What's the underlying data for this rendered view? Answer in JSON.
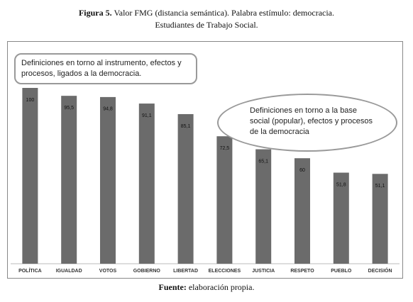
{
  "chart_data": {
    "type": "bar",
    "title": {
      "label": "Figura 5.",
      "text": "Valor FMG (distancia semántica). Palabra estímulo: democracia."
    },
    "subtitle": "Estudiantes de Trabajo Social.",
    "source": {
      "label": "Fuente:",
      "text": "elaboración propia."
    },
    "annotations": [
      "Definiciones en torno al instrumento, efectos y procesos, ligados a la democracia.",
      "Definiciones en torno a la base social (popular), efectos y procesos de la democracia"
    ],
    "categories": [
      "POLÍTICA",
      "IGUALDAD",
      "VOTOS",
      "GOBIERNO",
      "LIBERTAD",
      "ELECCIONES",
      "JUSTICIA",
      "RESPETO",
      "PUEBLO",
      "DECISIÓN"
    ],
    "values": [
      100,
      95.5,
      94.8,
      91.1,
      85.1,
      72.5,
      65.1,
      60,
      51.8,
      51.1
    ],
    "value_labels": [
      "100",
      "95,5",
      "94,8",
      "91,1",
      "85,1",
      "72,5",
      "65,1",
      "60",
      "51,8",
      "51,1"
    ],
    "color": "#6b6b6b",
    "ylim": [
      0,
      100
    ]
  }
}
